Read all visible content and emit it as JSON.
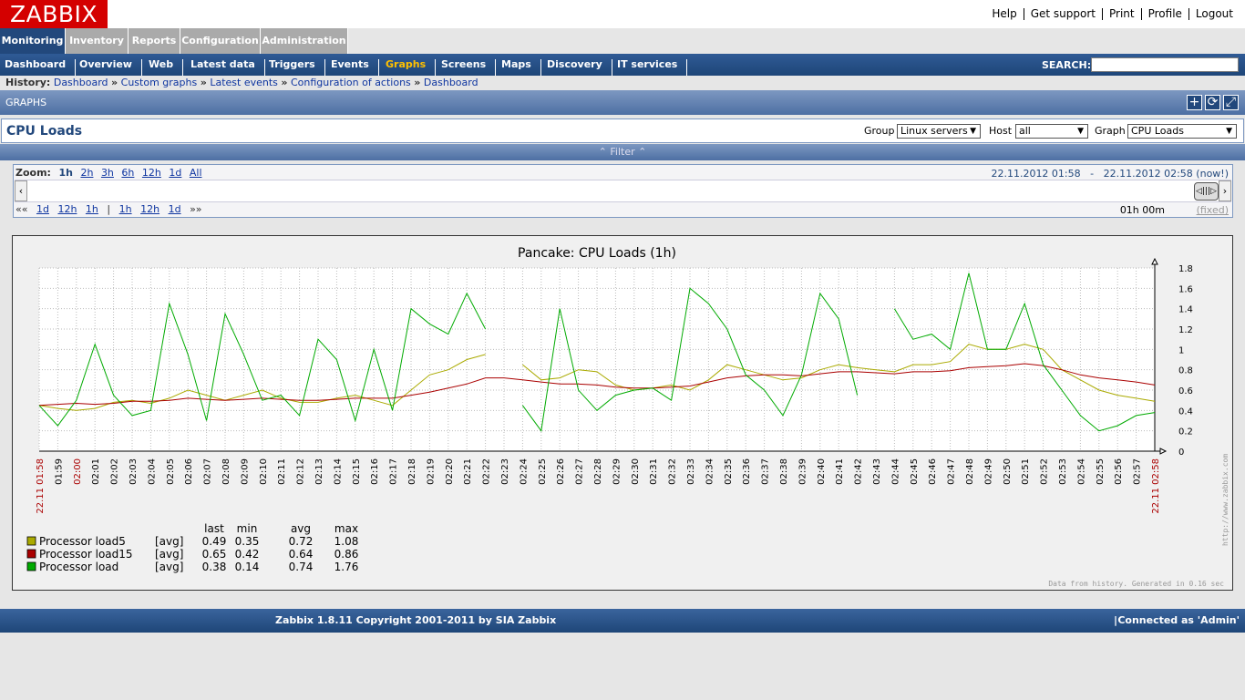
{
  "logo": "ZABBIX",
  "top_links": [
    "Help",
    "Get support",
    "Print",
    "Profile",
    "Logout"
  ],
  "main_menu": [
    "Monitoring",
    "Inventory",
    "Reports",
    "Configuration",
    "Administration"
  ],
  "sub_menu": [
    "Dashboard",
    "Overview",
    "Web",
    "Latest data",
    "Triggers",
    "Events",
    "Graphs",
    "Screens",
    "Maps",
    "Discovery",
    "IT services"
  ],
  "active_sub": "Graphs",
  "search": {
    "label": "SEARCH:",
    "value": ""
  },
  "history": {
    "label": "History:",
    "items": [
      "Dashboard",
      "Custom graphs",
      "Latest events",
      "Configuration of actions",
      "Dashboard"
    ],
    "sep": "»"
  },
  "section_title": "GRAPHS",
  "page_title": "CPU Loads",
  "filters": {
    "group_label": "Group",
    "group_value": "Linux servers",
    "host_label": "Host",
    "host_value": "all",
    "graph_label": "Graph",
    "graph_value": "CPU Loads"
  },
  "filter_bar": "⌃ Filter ⌃",
  "zoom": {
    "label": "Zoom:",
    "items": [
      "1h",
      "2h",
      "3h",
      "6h",
      "12h",
      "1d",
      "All"
    ],
    "current": "1h",
    "from": "22.11.2012 01:58",
    "dash": "-",
    "to": "22.11.2012 02:58 (now!)",
    "nav_left": "««",
    "nav_back": [
      "1d",
      "12h",
      "1h"
    ],
    "nav_sep": "|",
    "nav_fwd": [
      "1h",
      "12h",
      "1d"
    ],
    "nav_right": "»»",
    "period": "01h 00m",
    "fixed": "(fixed)"
  },
  "legend_headers": [
    "last",
    "min",
    "avg",
    "max"
  ],
  "legend": [
    {
      "name": "Processor load5",
      "type": "[avg]",
      "last": "0.49",
      "min": "0.35",
      "avg": "0.72",
      "max": "1.08",
      "color": "#aaaa00"
    },
    {
      "name": "Processor load15",
      "type": "[avg]",
      "last": "0.65",
      "min": "0.42",
      "avg": "0.64",
      "max": "0.86",
      "color": "#aa0000"
    },
    {
      "name": "Processor load",
      "type": "[avg]",
      "last": "0.38",
      "min": "0.14",
      "avg": "0.74",
      "max": "1.76",
      "color": "#00aa00"
    }
  ],
  "graph_info": "Data from history. Generated in 0.16 sec",
  "watermark": "http://www.zabbix.com",
  "chart_data": {
    "type": "line",
    "title": "Pancake: CPU Loads  (1h)",
    "ylim": [
      0,
      1.8
    ],
    "yticks": [
      "0",
      "0.2",
      "0.4",
      "0.6",
      "0.8",
      "1",
      "1.2",
      "1.4",
      "1.6",
      "1.8"
    ],
    "x": [
      "22.11 01:58",
      "01:59",
      "02:00",
      "02:01",
      "02:02",
      "02:03",
      "02:04",
      "02:05",
      "02:06",
      "02:07",
      "02:08",
      "02:09",
      "02:10",
      "02:11",
      "02:12",
      "02:13",
      "02:14",
      "02:15",
      "02:16",
      "02:17",
      "02:18",
      "02:19",
      "02:20",
      "02:21",
      "02:22",
      "02:23",
      "02:24",
      "02:25",
      "02:26",
      "02:27",
      "02:28",
      "02:29",
      "02:30",
      "02:31",
      "02:32",
      "02:33",
      "02:34",
      "02:35",
      "02:36",
      "02:37",
      "02:38",
      "02:39",
      "02:40",
      "02:41",
      "02:42",
      "02:43",
      "02:44",
      "02:45",
      "02:46",
      "02:47",
      "02:48",
      "02:49",
      "02:50",
      "02:51",
      "02:52",
      "02:53",
      "02:54",
      "02:55",
      "02:56",
      "02:57",
      "22.11 02:58"
    ],
    "red_ticks": [
      "22.11 01:58",
      "02:00",
      "22.11 02:58"
    ],
    "series": [
      {
        "name": "Processor load5",
        "color": "#aaaa00",
        "values": [
          0.45,
          0.42,
          0.4,
          0.42,
          0.48,
          0.5,
          0.47,
          0.52,
          0.6,
          0.55,
          0.5,
          0.55,
          0.6,
          0.52,
          0.48,
          0.48,
          0.52,
          0.55,
          0.5,
          0.45,
          0.6,
          0.75,
          0.8,
          0.9,
          0.95,
          null,
          0.85,
          0.7,
          0.72,
          0.8,
          0.78,
          0.65,
          0.6,
          0.62,
          0.65,
          0.6,
          0.7,
          0.85,
          0.8,
          0.75,
          0.7,
          0.72,
          0.8,
          0.85,
          0.82,
          0.8,
          0.78,
          0.85,
          0.85,
          0.88,
          1.05,
          1.0,
          1.0,
          1.05,
          1.0,
          0.8,
          0.7,
          0.6,
          0.55,
          0.52,
          0.49
        ]
      },
      {
        "name": "Processor load15",
        "color": "#aa0000",
        "values": [
          0.45,
          0.46,
          0.47,
          0.46,
          0.47,
          0.49,
          0.49,
          0.5,
          0.52,
          0.51,
          0.5,
          0.51,
          0.52,
          0.51,
          0.5,
          0.5,
          0.51,
          0.52,
          0.52,
          0.52,
          0.55,
          0.58,
          0.62,
          0.66,
          0.72,
          0.72,
          0.7,
          0.68,
          0.66,
          0.66,
          0.65,
          0.63,
          0.62,
          0.62,
          0.63,
          0.64,
          0.68,
          0.72,
          0.74,
          0.75,
          0.75,
          0.74,
          0.76,
          0.78,
          0.78,
          0.77,
          0.76,
          0.78,
          0.78,
          0.79,
          0.82,
          0.83,
          0.84,
          0.86,
          0.84,
          0.8,
          0.75,
          0.72,
          0.7,
          0.68,
          0.65
        ]
      },
      {
        "name": "Processor load",
        "color": "#00aa00",
        "values": [
          0.45,
          0.25,
          0.5,
          1.05,
          0.55,
          0.35,
          0.4,
          1.45,
          0.95,
          0.3,
          1.35,
          0.95,
          0.5,
          0.55,
          0.35,
          1.1,
          0.9,
          0.3,
          1.0,
          0.4,
          1.4,
          1.25,
          1.15,
          1.55,
          1.2,
          null,
          0.45,
          0.2,
          1.4,
          0.6,
          0.4,
          0.55,
          0.6,
          0.62,
          0.5,
          1.6,
          1.45,
          1.2,
          0.75,
          0.6,
          0.35,
          0.75,
          1.55,
          1.3,
          0.55,
          null,
          1.4,
          1.1,
          1.15,
          1.0,
          1.75,
          1.0,
          1.0,
          1.45,
          0.85,
          0.6,
          0.35,
          0.2,
          0.25,
          0.35,
          0.38
        ]
      }
    ]
  },
  "footer": {
    "copyright": "Zabbix 1.8.11 Copyright 2001-2011 by SIA Zabbix",
    "sep": "|",
    "connected": "Connected as 'Admin'"
  }
}
